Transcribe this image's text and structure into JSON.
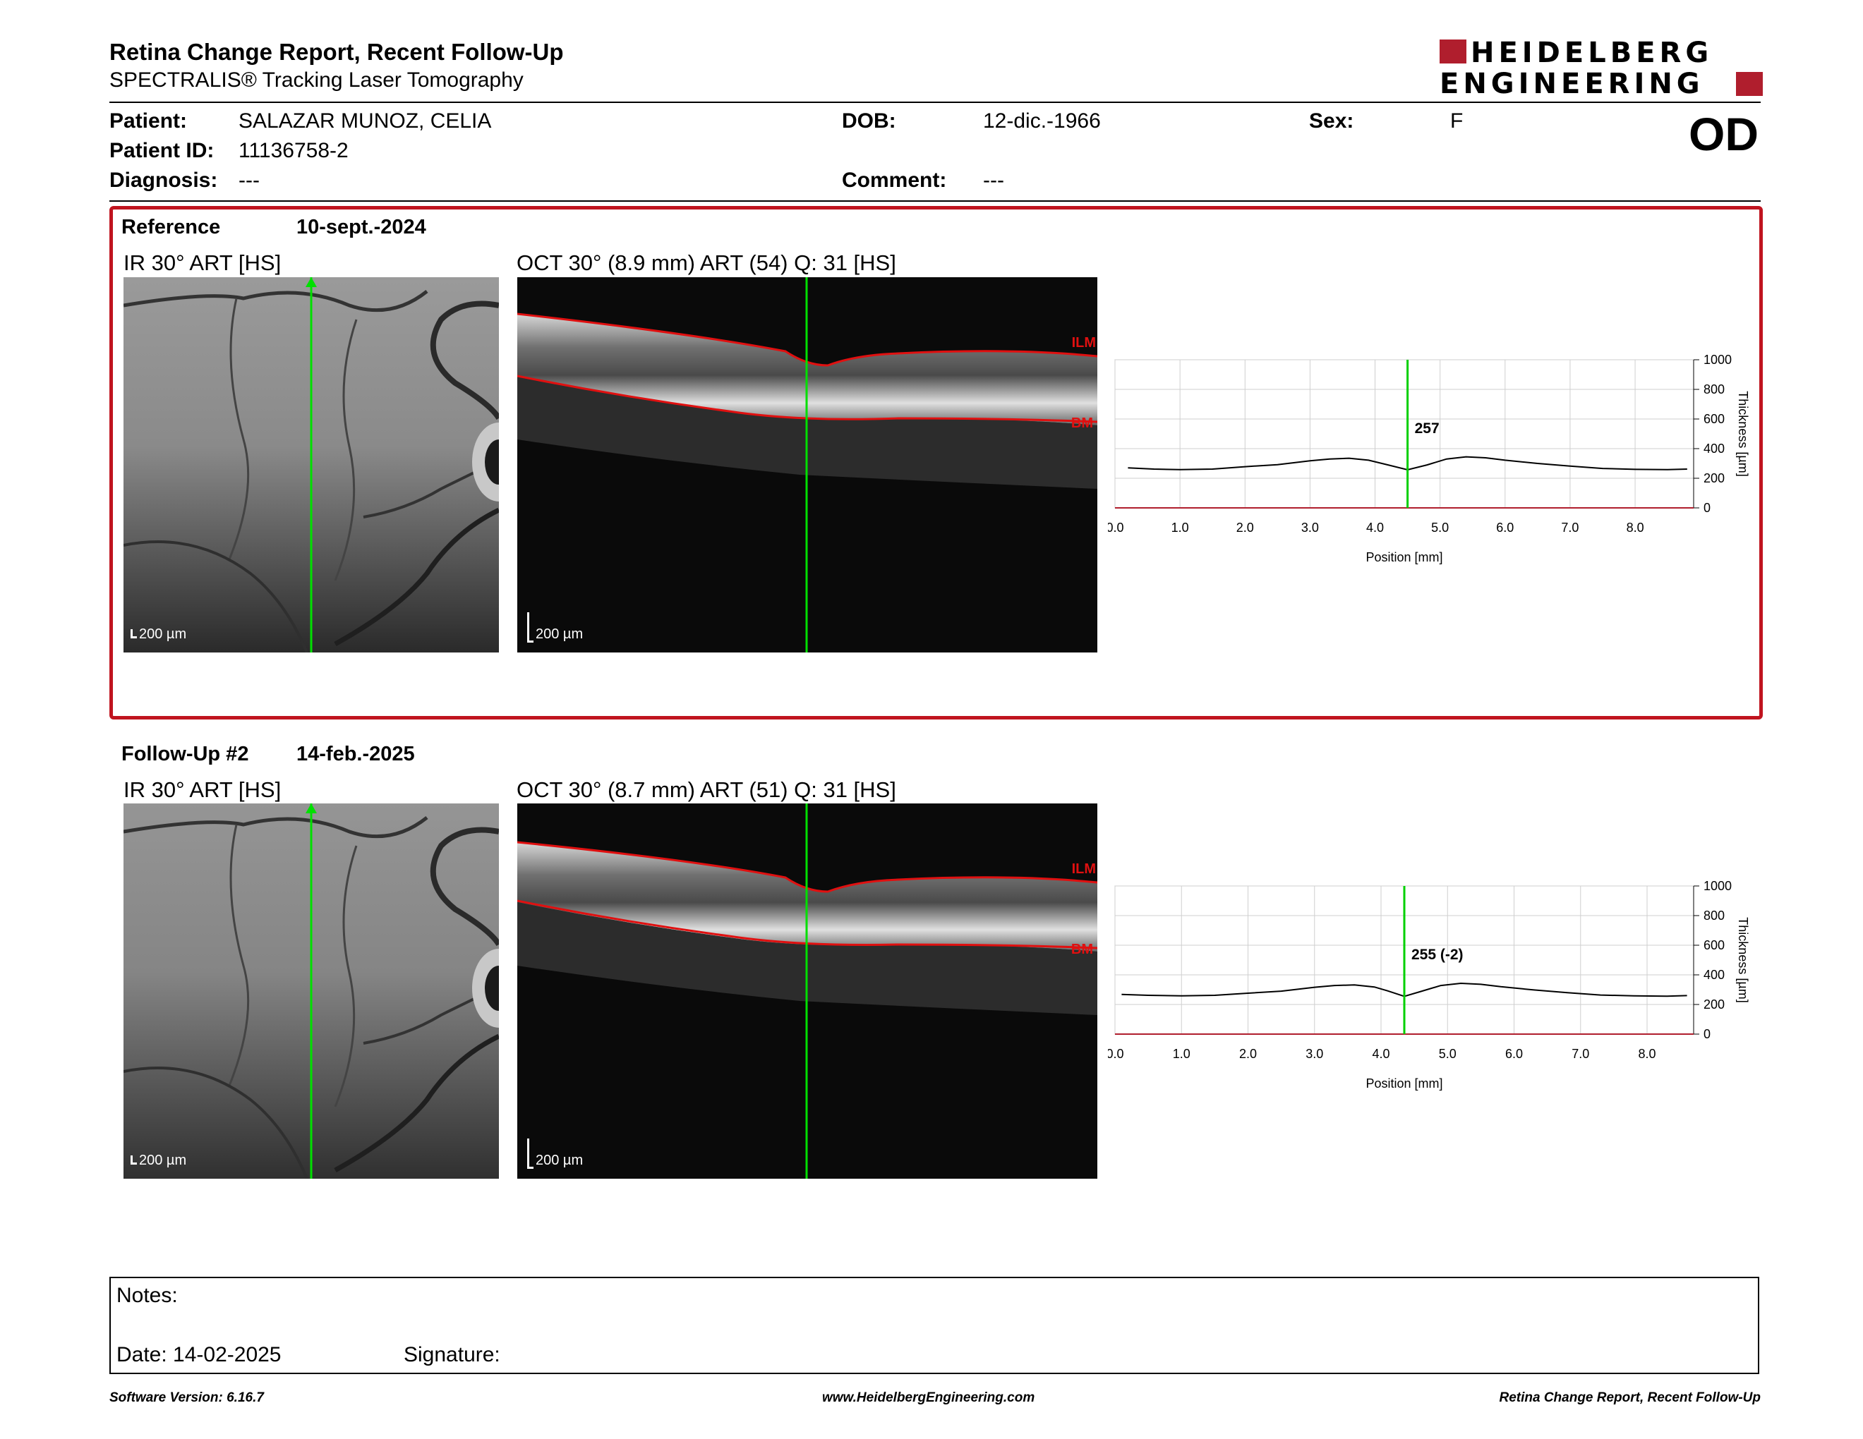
{
  "header": {
    "title": "Retina Change Report, Recent Follow-Up",
    "subtitle": "SPECTRALIS® Tracking Laser Tomography",
    "logo_line1": "HEIDELBERG",
    "logo_line2": "ENGINEERING",
    "brand_color": "#b01e2d"
  },
  "patient": {
    "patient_label": "Patient:",
    "patient_value": "SALAZAR MUNOZ, CELIA",
    "id_label": "Patient ID:",
    "id_value": "11136758-2",
    "diagnosis_label": "Diagnosis:",
    "diagnosis_value": "---",
    "dob_label": "DOB:",
    "dob_value": "12-dic.-1966",
    "comment_label": "Comment:",
    "comment_value": "---",
    "sex_label": "Sex:",
    "sex_value": "F",
    "eye": "OD"
  },
  "reference": {
    "label": "Reference",
    "date": "10-sept.-2024",
    "ir_label": "IR 30° ART [HS]",
    "oct_label": "OCT 30° (8.9 mm) ART (54) Q: 31 [HS]",
    "ir_scale": "200 µm",
    "oct_scale": "200 µm",
    "ilm_label": "ILM",
    "bm_label": "BM",
    "frame_color": "#c0141f"
  },
  "followup": {
    "label": "Follow-Up #2",
    "date": "14-feb.-2025",
    "ir_label": "IR 30° ART [HS]",
    "oct_label": "OCT 30° (8.7 mm) ART (51) Q: 31 [HS]",
    "ir_scale": "200 µm",
    "oct_scale": "200 µm",
    "ilm_label": "ILM",
    "bm_label": "BM"
  },
  "chart_data": [
    {
      "type": "line",
      "xlabel": "Position [mm]",
      "ylabel": "Thickness [µm]",
      "xlim": [
        0,
        8.9
      ],
      "ylim": [
        0,
        1000
      ],
      "xticks": [
        "0.0",
        "1.0",
        "2.0",
        "3.0",
        "4.0",
        "5.0",
        "6.0",
        "7.0",
        "8.0"
      ],
      "yticks": [
        "0",
        "200",
        "400",
        "600",
        "800",
        "1000"
      ],
      "grid": true,
      "marker_x": 4.5,
      "marker_label": "257",
      "series": [
        {
          "x": [
            0.2,
            0.6,
            1.0,
            1.5,
            2.0,
            2.5,
            3.0,
            3.3,
            3.6,
            3.9,
            4.2,
            4.5,
            4.8,
            5.1,
            5.4,
            5.7,
            6.0,
            6.5,
            7.0,
            7.5,
            8.0,
            8.5,
            8.8
          ],
          "values": [
            270,
            262,
            258,
            262,
            278,
            292,
            318,
            330,
            335,
            322,
            290,
            257,
            290,
            330,
            345,
            338,
            322,
            300,
            282,
            266,
            260,
            258,
            262
          ]
        }
      ]
    },
    {
      "type": "line",
      "xlabel": "Position [mm]",
      "ylabel": "Thickness [µm]",
      "xlim": [
        0,
        8.7
      ],
      "ylim": [
        0,
        1000
      ],
      "xticks": [
        "0.0",
        "1.0",
        "2.0",
        "3.0",
        "4.0",
        "5.0",
        "6.0",
        "7.0",
        "8.0"
      ],
      "yticks": [
        "0",
        "200",
        "400",
        "600",
        "800",
        "1000"
      ],
      "grid": true,
      "marker_x": 4.35,
      "marker_label": "255 (-2)",
      "series": [
        {
          "x": [
            0.1,
            0.5,
            1.0,
            1.5,
            2.0,
            2.5,
            3.0,
            3.3,
            3.6,
            3.9,
            4.1,
            4.35,
            4.6,
            4.9,
            5.2,
            5.5,
            5.8,
            6.3,
            6.8,
            7.3,
            7.8,
            8.3,
            8.6
          ],
          "values": [
            268,
            262,
            258,
            262,
            276,
            290,
            316,
            328,
            332,
            318,
            292,
            255,
            288,
            328,
            343,
            336,
            320,
            298,
            280,
            264,
            258,
            256,
            260
          ]
        }
      ]
    }
  ],
  "notes": {
    "notes_label": "Notes:",
    "date_label": "Date: 14-02-2025",
    "signature_label": "Signature:"
  },
  "footer": {
    "software": "Software Version: 6.16.7",
    "website": "www.HeidelbergEngineering.com",
    "report_name": "Retina Change Report, Recent Follow-Up"
  }
}
